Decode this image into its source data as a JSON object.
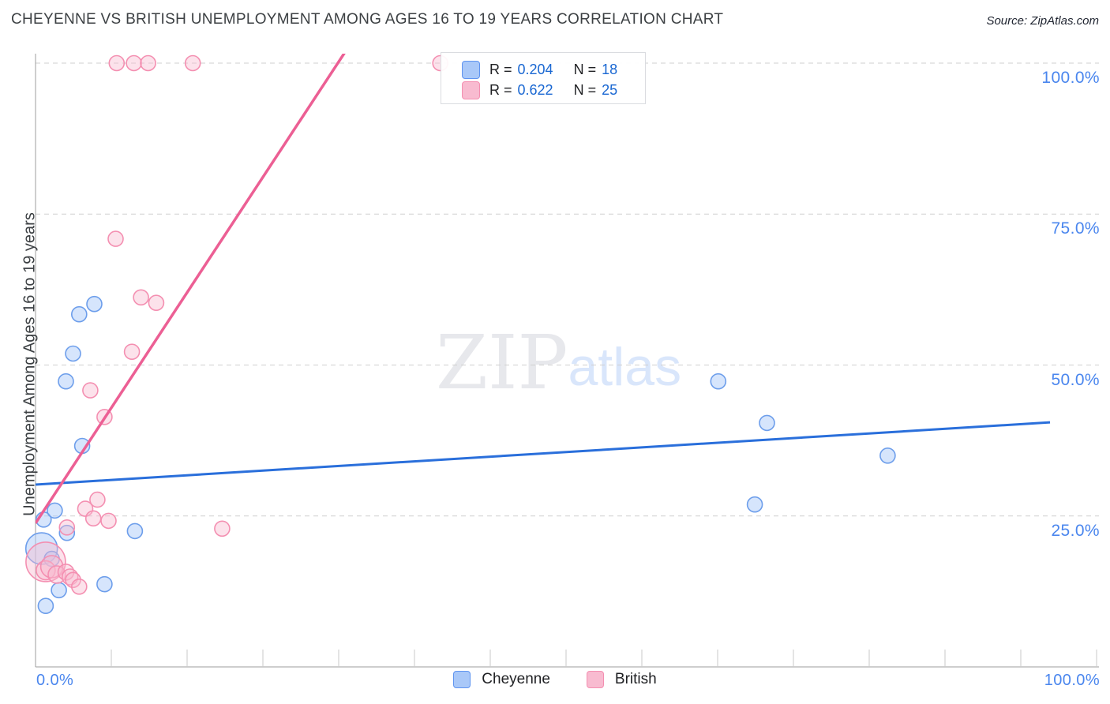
{
  "header": {
    "title": "CHEYENNE VS BRITISH UNEMPLOYMENT AMONG AGES 16 TO 19 YEARS CORRELATION CHART",
    "source": "Source: ZipAtlas.com"
  },
  "watermark": {
    "zip": "ZIP",
    "atlas": "atlas"
  },
  "legend_box": {
    "rows": [
      {
        "series": "Cheyenne",
        "r_label": "R =",
        "r_value": "0.204",
        "n_label": "N =",
        "n_value": "18"
      },
      {
        "series": "British",
        "r_label": "R =",
        "r_value": "0.622",
        "n_label": "N =",
        "n_value": "25"
      }
    ]
  },
  "axes": {
    "y_title": "Unemployment Among Ages 16 to 19 years",
    "y_tick_labels": [
      "100.0%",
      "75.0%",
      "50.0%",
      "25.0%"
    ],
    "y_tick_values": [
      100,
      75,
      50,
      25
    ],
    "x_min_label": "0.0%",
    "x_max_label": "100.0%"
  },
  "bottom_legend": [
    {
      "label": "Cheyenne",
      "color": "#a9c8f8"
    },
    {
      "label": "British",
      "color": "#f8bbd0"
    }
  ],
  "chart_data": {
    "type": "scatter",
    "title": "Cheyenne vs British Unemployment Among Ages 16 to 19 years",
    "xlabel": "",
    "ylabel": "Unemployment Among Ages 16 to 19 years",
    "xlim": [
      0,
      100
    ],
    "ylim": [
      0,
      102
    ],
    "grid": "horizontal dashed at 25/50/75/100",
    "legend_position": "top-center (R/N box) and bottom-center (series names)",
    "colors": {
      "cheyenne_fill": "rgba(174,203,250,0.5)",
      "cheyenne_stroke": "#6d9eeb",
      "british_fill": "rgba(248,187,208,0.42)",
      "british_stroke": "#f48fb1",
      "cheyenne_trend": "#2a6fdb",
      "british_trend": "#ec5f94",
      "grid": "#cfcfcf",
      "axis": "#9e9e9e",
      "tick_label": "#4a86ee"
    },
    "series": [
      {
        "name": "Cheyenne",
        "R": 0.204,
        "N": 18,
        "points_xy_r": [
          [
            0.8,
            24.4
          ],
          [
            1.9,
            25.9
          ],
          [
            3.1,
            22.2
          ],
          [
            9.8,
            22.5
          ],
          [
            0.6,
            19.6,
            20
          ],
          [
            1.6,
            17.9
          ],
          [
            2.3,
            12.7
          ],
          [
            1.0,
            10.1
          ],
          [
            6.8,
            13.7
          ],
          [
            5.8,
            60.1
          ],
          [
            4.3,
            58.4
          ],
          [
            3.7,
            51.9
          ],
          [
            3.0,
            47.3
          ],
          [
            4.6,
            36.6
          ],
          [
            67.3,
            47.3
          ],
          [
            72.1,
            40.4
          ],
          [
            84.0,
            35.0
          ],
          [
            70.9,
            26.9
          ]
        ]
      },
      {
        "name": "British",
        "R": 0.622,
        "N": 25,
        "points_xy_r": [
          [
            8.0,
            100
          ],
          [
            9.7,
            100
          ],
          [
            11.1,
            100
          ],
          [
            15.5,
            100
          ],
          [
            39.9,
            100
          ],
          [
            7.9,
            70.9
          ],
          [
            10.4,
            61.2
          ],
          [
            11.9,
            60.3
          ],
          [
            9.5,
            52.2
          ],
          [
            5.4,
            45.8
          ],
          [
            6.8,
            41.4
          ],
          [
            4.9,
            26.2
          ],
          [
            6.1,
            27.7
          ],
          [
            5.7,
            24.6
          ],
          [
            7.2,
            24.2
          ],
          [
            3.1,
            23.1
          ],
          [
            18.4,
            22.9
          ],
          [
            1.0,
            17.4,
            25
          ],
          [
            1.0,
            16.0,
            12
          ],
          [
            1.6,
            16.6,
            14
          ],
          [
            2.1,
            15.3,
            11
          ],
          [
            3.0,
            15.7,
            10
          ],
          [
            3.4,
            14.9,
            10
          ],
          [
            3.7,
            14.4
          ],
          [
            4.3,
            13.3
          ]
        ]
      }
    ],
    "trend_lines": [
      {
        "series": "Cheyenne",
        "x": [
          0,
          100
        ],
        "y": [
          30.2,
          40.5
        ]
      },
      {
        "series": "British",
        "x": [
          0,
          30.5
        ],
        "y": [
          23.8,
          101.8
        ]
      }
    ]
  }
}
